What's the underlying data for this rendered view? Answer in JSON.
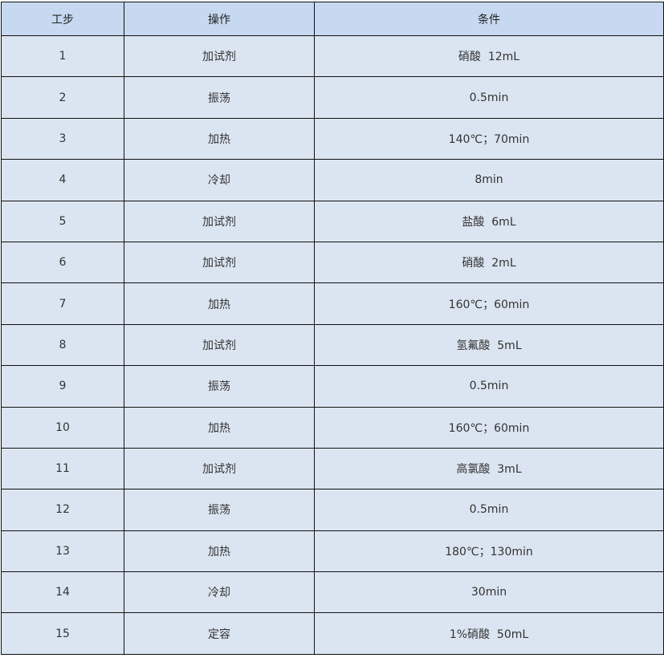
{
  "headers": [
    "工步",
    "操作",
    "条件"
  ],
  "rows": [
    [
      "1",
      "加试剂",
      "硝酸  12mL"
    ],
    [
      "2",
      "振荡",
      "0.5min"
    ],
    [
      "3",
      "加热",
      "140℃；70min"
    ],
    [
      "4",
      "冷却",
      "8min"
    ],
    [
      "5",
      "加试剂",
      "盐酸  6mL"
    ],
    [
      "6",
      "加试剂",
      "硝酸  2mL"
    ],
    [
      "7",
      "加热",
      "160℃；60min"
    ],
    [
      "8",
      "加试剂",
      "氢氟酸  5mL"
    ],
    [
      "9",
      "振荡",
      "0.5min"
    ],
    [
      "10",
      "加热",
      "160℃；60min"
    ],
    [
      "11",
      "加试剂",
      "高氯酸  3mL"
    ],
    [
      "12",
      "振荡",
      "0.5min"
    ],
    [
      "13",
      "加热",
      "180℃；130min"
    ],
    [
      "14",
      "冷却",
      "30min"
    ],
    [
      "15",
      "定容",
      "1%硝酸  50mL"
    ]
  ]
}
